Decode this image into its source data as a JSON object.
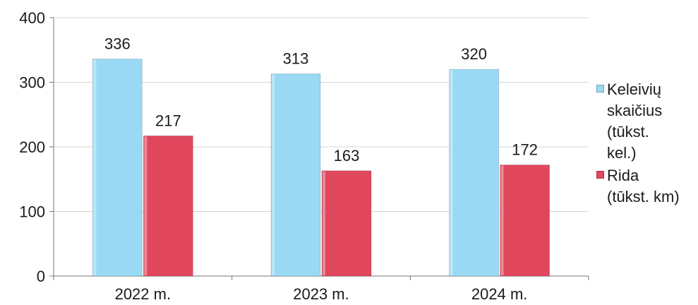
{
  "chart_data": {
    "type": "bar",
    "categories": [
      "2022 m.",
      "2023 m.",
      "2024 m."
    ],
    "series": [
      {
        "name": "Keleivių skaičius (tūkst. kel.)",
        "values": [
          336,
          313,
          320
        ],
        "color": "#99d9f4"
      },
      {
        "name": "Rida (tūkst. km)",
        "values": [
          217,
          163,
          172
        ],
        "color": "#e0475d"
      }
    ],
    "yticks": [
      0,
      100,
      200,
      300,
      400
    ],
    "ylim": [
      0,
      400
    ],
    "grid": true,
    "legend_position": "right"
  },
  "legend": {
    "items": [
      {
        "label_lines": [
          "Keleivių",
          "skaičius",
          "(tūkst.",
          "kel.)"
        ],
        "color": "#99d9f4"
      },
      {
        "label_lines": [
          "Rida",
          "(tūkst. km)"
        ],
        "color": "#e0475d"
      }
    ]
  }
}
